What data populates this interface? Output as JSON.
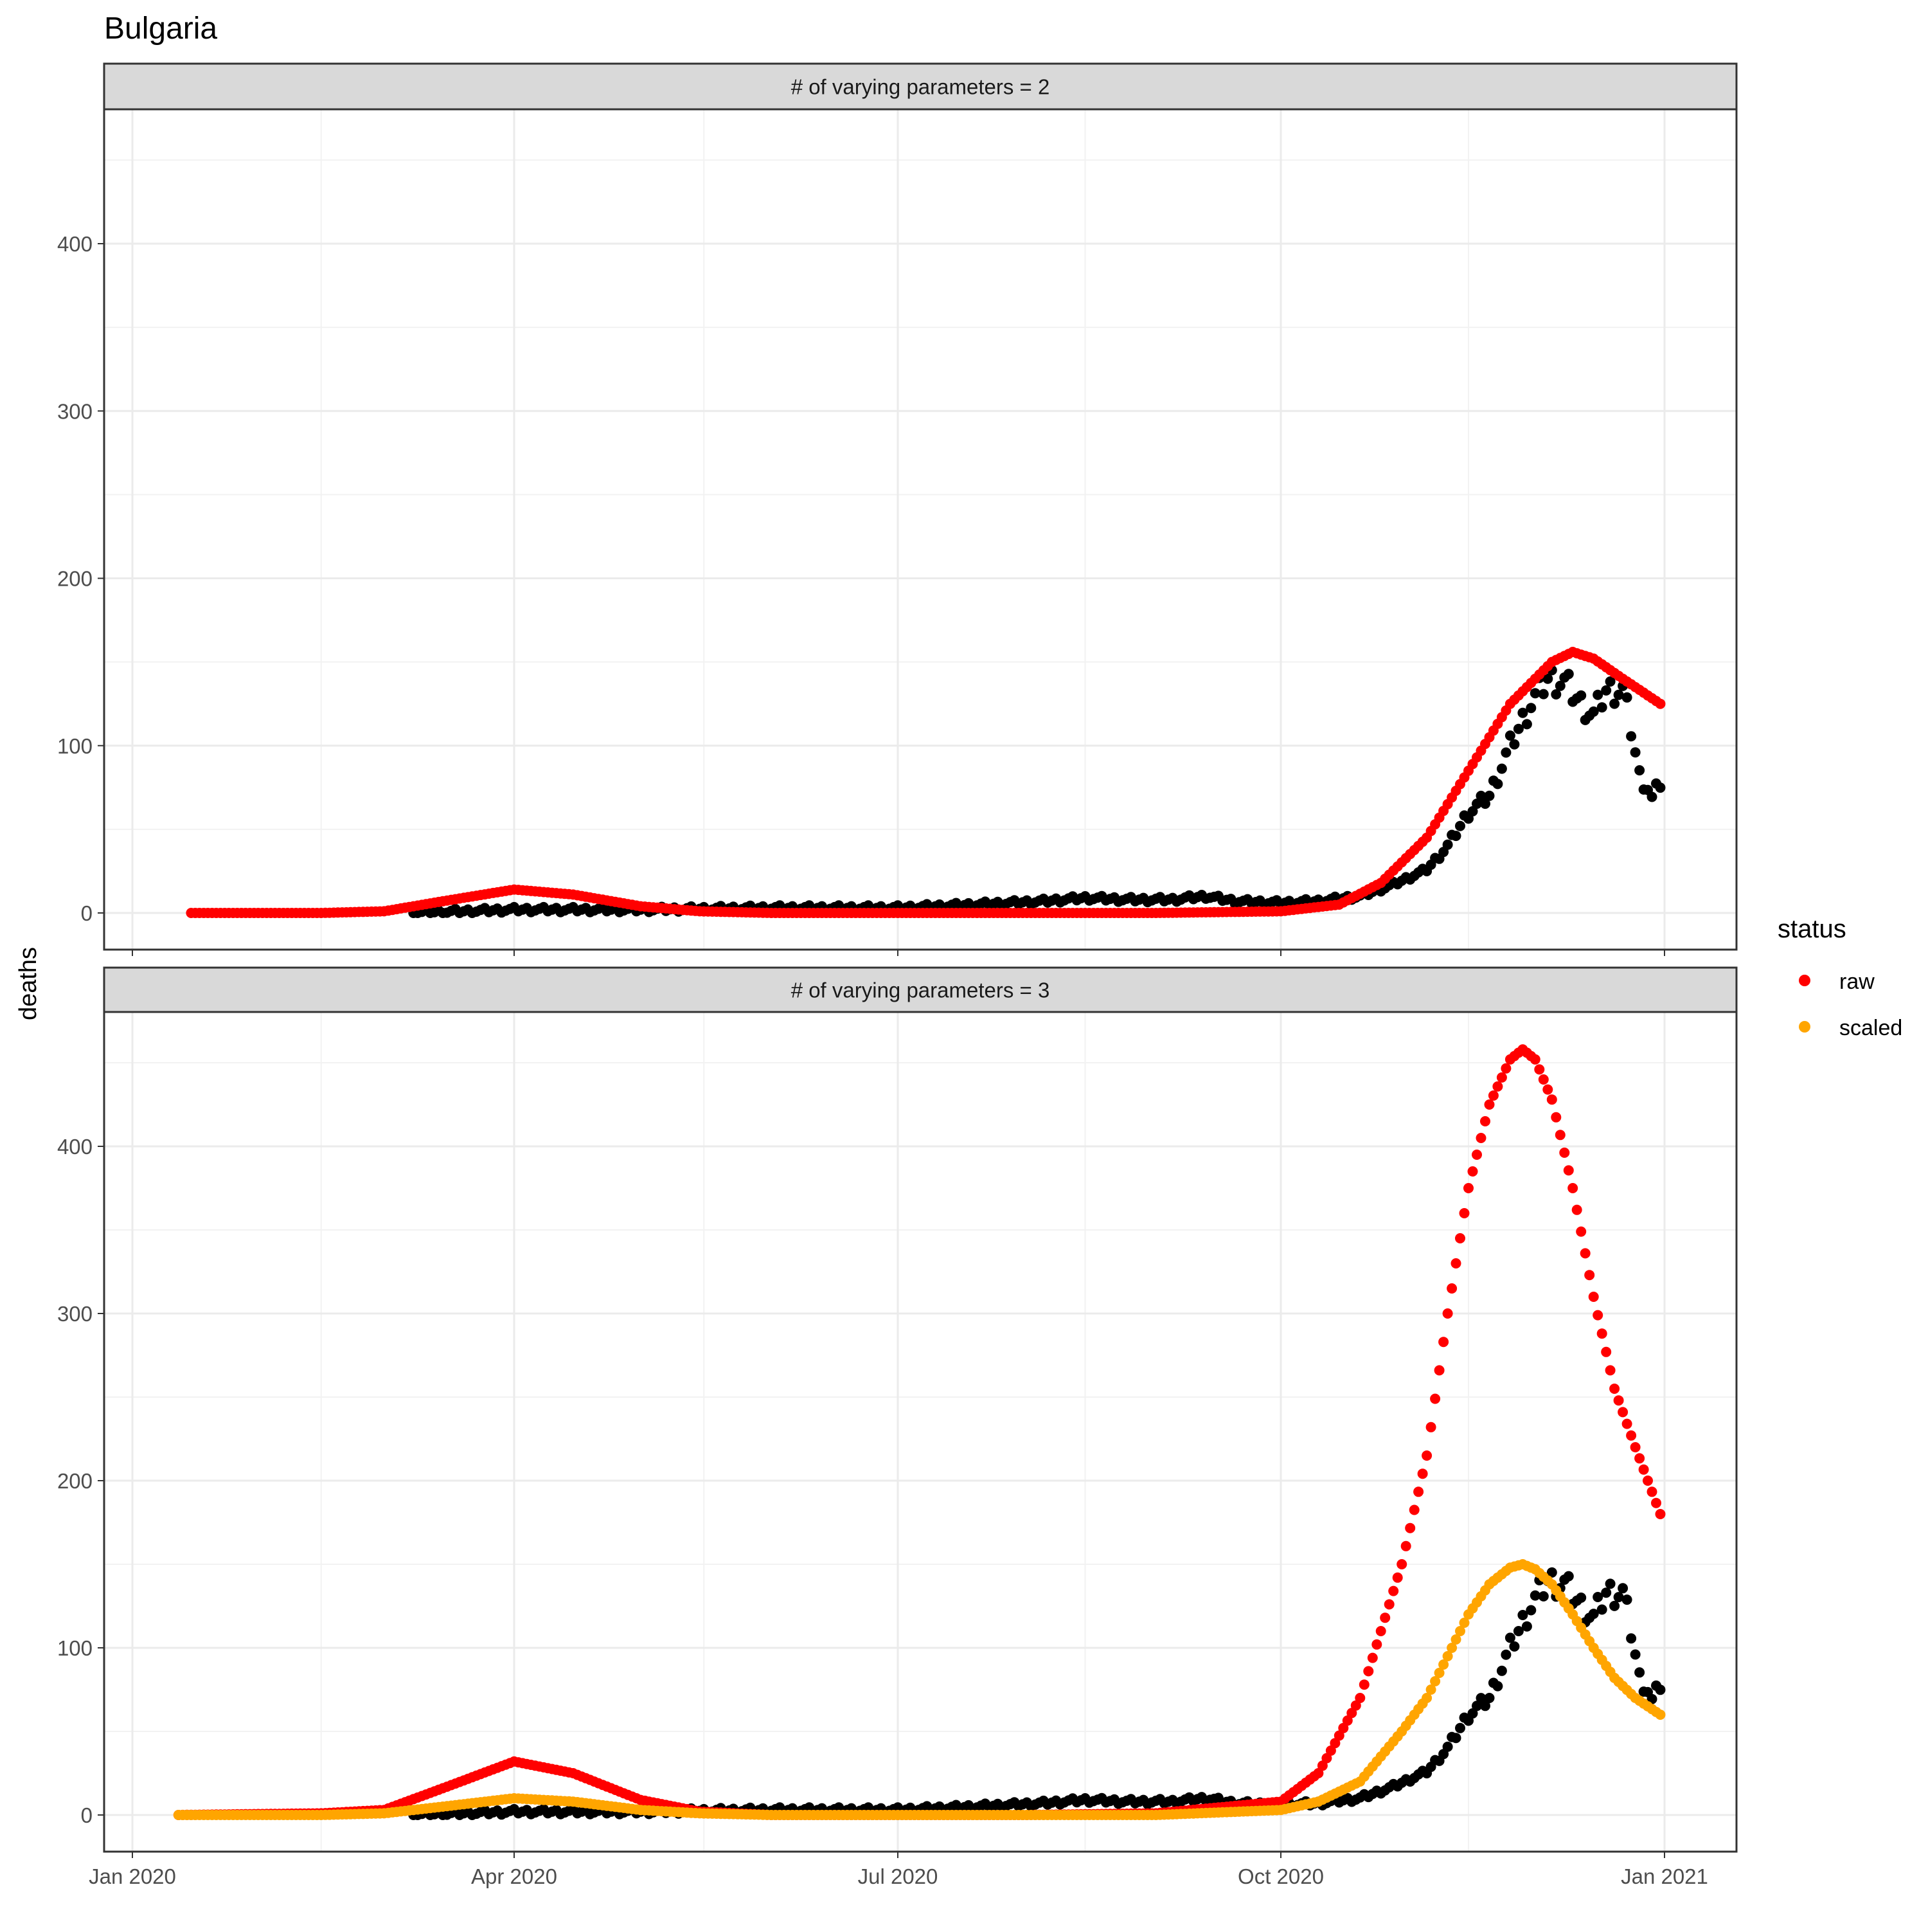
{
  "title": "Bulgaria",
  "ylabel": "deaths",
  "legend": {
    "title": "status",
    "items": [
      {
        "label": "raw",
        "color": "#ff0000"
      },
      {
        "label": "scaled",
        "color": "#ffa500"
      }
    ],
    "placement": "right"
  },
  "colors": {
    "observed": "#000000",
    "raw": "#ff0000",
    "scaled": "#ffa500",
    "strip": "#d9d9d9",
    "grid": "#ebebeb"
  },
  "chart_data": [
    {
      "type": "scatter",
      "facet_label": "# of varying parameters = 2",
      "xlim": [
        "2020-01-01",
        "2021-01-01"
      ],
      "ylim": [
        0,
        475
      ],
      "y_ticks": [
        0,
        100,
        200,
        300,
        400
      ],
      "x_ticks": [
        "Jan 2020",
        "Apr 2020",
        "Jul 2020",
        "Oct 2020",
        "Jan 2021"
      ],
      "grid": true,
      "series": [
        {
          "color": "#000000",
          "points": [
            [
              "2020-03-08",
              0
            ],
            [
              "2020-03-20",
              1
            ],
            [
              "2020-04-01",
              2
            ],
            [
              "2020-04-15",
              2
            ],
            [
              "2020-05-01",
              2
            ],
            [
              "2020-06-01",
              3
            ],
            [
              "2020-07-01",
              3
            ],
            [
              "2020-07-20",
              5
            ],
            [
              "2020-08-05",
              7
            ],
            [
              "2020-08-15",
              9
            ],
            [
              "2020-08-25",
              8
            ],
            [
              "2020-09-05",
              8
            ],
            [
              "2020-09-13",
              10
            ],
            [
              "2020-09-20",
              7
            ],
            [
              "2020-10-01",
              6
            ],
            [
              "2020-10-10",
              7
            ],
            [
              "2020-10-20",
              10
            ],
            [
              "2020-10-28",
              17
            ],
            [
              "2020-11-05",
              26
            ],
            [
              "2020-11-10",
              40
            ],
            [
              "2020-11-15",
              60
            ],
            [
              "2020-11-20",
              70
            ],
            [
              "2020-11-25",
              100
            ],
            [
              "2020-11-30",
              125
            ],
            [
              "2020-12-04",
              140
            ],
            [
              "2020-12-08",
              138
            ],
            [
              "2020-12-12",
              125
            ],
            [
              "2020-12-15",
              118
            ],
            [
              "2020-12-18",
              133
            ],
            [
              "2020-12-22",
              133
            ],
            [
              "2020-12-24",
              110
            ],
            [
              "2020-12-26",
              82
            ],
            [
              "2020-12-28",
              75
            ],
            [
              "2020-12-29",
              68
            ],
            [
              "2020-12-31",
              78
            ]
          ]
        },
        {
          "name": "raw",
          "color": "#ff0000",
          "points": [
            [
              "2020-01-15",
              0
            ],
            [
              "2020-02-15",
              0
            ],
            [
              "2020-03-01",
              1
            ],
            [
              "2020-03-15",
              7
            ],
            [
              "2020-04-01",
              14
            ],
            [
              "2020-04-15",
              11
            ],
            [
              "2020-05-01",
              4
            ],
            [
              "2020-05-15",
              1
            ],
            [
              "2020-06-01",
              0
            ],
            [
              "2020-07-01",
              0
            ],
            [
              "2020-08-01",
              0
            ],
            [
              "2020-09-01",
              0
            ],
            [
              "2020-10-01",
              1
            ],
            [
              "2020-10-15",
              5
            ],
            [
              "2020-10-25",
              18
            ],
            [
              "2020-11-05",
              45
            ],
            [
              "2020-11-15",
              85
            ],
            [
              "2020-11-25",
              125
            ],
            [
              "2020-12-05",
              150
            ],
            [
              "2020-12-10",
              156
            ],
            [
              "2020-12-15",
              152
            ],
            [
              "2020-12-22",
              140
            ],
            [
              "2020-12-31",
              125
            ]
          ]
        }
      ]
    },
    {
      "type": "scatter",
      "facet_label": "# of varying parameters = 3",
      "xlim": [
        "2020-01-01",
        "2021-01-01"
      ],
      "ylim": [
        0,
        475
      ],
      "y_ticks": [
        0,
        100,
        200,
        300,
        400
      ],
      "x_ticks": [
        "Jan 2020",
        "Apr 2020",
        "Jul 2020",
        "Oct 2020",
        "Jan 2021"
      ],
      "grid": true,
      "series": [
        {
          "color": "#000000",
          "points": [
            [
              "2020-03-08",
              0
            ],
            [
              "2020-03-20",
              1
            ],
            [
              "2020-04-01",
              2
            ],
            [
              "2020-04-15",
              2
            ],
            [
              "2020-05-01",
              2
            ],
            [
              "2020-06-01",
              3
            ],
            [
              "2020-07-01",
              3
            ],
            [
              "2020-07-20",
              5
            ],
            [
              "2020-08-05",
              7
            ],
            [
              "2020-08-15",
              9
            ],
            [
              "2020-08-25",
              8
            ],
            [
              "2020-09-05",
              8
            ],
            [
              "2020-09-13",
              10
            ],
            [
              "2020-09-20",
              7
            ],
            [
              "2020-10-01",
              6
            ],
            [
              "2020-10-10",
              7
            ],
            [
              "2020-10-20",
              10
            ],
            [
              "2020-10-28",
              17
            ],
            [
              "2020-11-05",
              26
            ],
            [
              "2020-11-10",
              40
            ],
            [
              "2020-11-15",
              60
            ],
            [
              "2020-11-20",
              70
            ],
            [
              "2020-11-25",
              100
            ],
            [
              "2020-11-30",
              125
            ],
            [
              "2020-12-04",
              140
            ],
            [
              "2020-12-08",
              138
            ],
            [
              "2020-12-12",
              125
            ],
            [
              "2020-12-15",
              118
            ],
            [
              "2020-12-18",
              133
            ],
            [
              "2020-12-22",
              133
            ],
            [
              "2020-12-24",
              110
            ],
            [
              "2020-12-26",
              82
            ],
            [
              "2020-12-28",
              75
            ],
            [
              "2020-12-29",
              68
            ],
            [
              "2020-12-31",
              78
            ]
          ]
        },
        {
          "name": "raw",
          "color": "#ff0000",
          "points": [
            [
              "2020-01-12",
              0
            ],
            [
              "2020-02-15",
              1
            ],
            [
              "2020-03-01",
              3
            ],
            [
              "2020-03-15",
              16
            ],
            [
              "2020-04-01",
              32
            ],
            [
              "2020-04-15",
              25
            ],
            [
              "2020-05-01",
              9
            ],
            [
              "2020-05-15",
              2
            ],
            [
              "2020-06-01",
              0
            ],
            [
              "2020-07-01",
              0
            ],
            [
              "2020-08-01",
              0
            ],
            [
              "2020-09-01",
              1
            ],
            [
              "2020-10-01",
              8
            ],
            [
              "2020-10-10",
              25
            ],
            [
              "2020-10-20",
              70
            ],
            [
              "2020-10-30",
              150
            ],
            [
              "2020-11-05",
              215
            ],
            [
              "2020-11-10",
              300
            ],
            [
              "2020-11-15",
              375
            ],
            [
              "2020-11-20",
              425
            ],
            [
              "2020-11-25",
              452
            ],
            [
              "2020-11-28",
              458
            ],
            [
              "2020-12-01",
              452
            ],
            [
              "2020-12-05",
              428
            ],
            [
              "2020-12-10",
              375
            ],
            [
              "2020-12-15",
              310
            ],
            [
              "2020-12-20",
              255
            ],
            [
              "2020-12-25",
              220
            ],
            [
              "2020-12-31",
              180
            ]
          ]
        },
        {
          "name": "scaled",
          "color": "#ffa500",
          "points": [
            [
              "2020-01-12",
              0
            ],
            [
              "2020-02-15",
              0
            ],
            [
              "2020-03-01",
              1
            ],
            [
              "2020-03-15",
              5
            ],
            [
              "2020-04-01",
              10
            ],
            [
              "2020-04-15",
              8
            ],
            [
              "2020-05-01",
              3
            ],
            [
              "2020-05-15",
              1
            ],
            [
              "2020-06-01",
              0
            ],
            [
              "2020-07-01",
              0
            ],
            [
              "2020-08-01",
              0
            ],
            [
              "2020-09-01",
              0
            ],
            [
              "2020-10-01",
              3
            ],
            [
              "2020-10-10",
              8
            ],
            [
              "2020-10-20",
              20
            ],
            [
              "2020-10-30",
              50
            ],
            [
              "2020-11-05",
              70
            ],
            [
              "2020-11-10",
              95
            ],
            [
              "2020-11-15",
              120
            ],
            [
              "2020-11-20",
              138
            ],
            [
              "2020-11-25",
              148
            ],
            [
              "2020-11-28",
              150
            ],
            [
              "2020-12-01",
              147
            ],
            [
              "2020-12-05",
              138
            ],
            [
              "2020-12-10",
              120
            ],
            [
              "2020-12-15",
              100
            ],
            [
              "2020-12-20",
              82
            ],
            [
              "2020-12-25",
              70
            ],
            [
              "2020-12-31",
              60
            ]
          ]
        }
      ]
    }
  ]
}
